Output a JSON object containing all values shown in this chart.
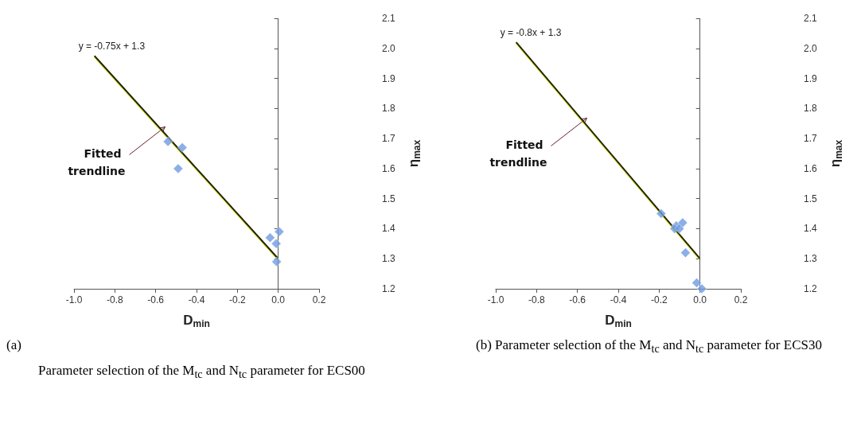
{
  "chart_data": [
    {
      "type": "scatter",
      "xlabel": "D$_{min}$",
      "ylabel": "η$_{max}$",
      "marker": "diamond",
      "grid": false,
      "xlim": [
        -1.0,
        0.2
      ],
      "xticks": [
        {
          "value": -1.0,
          "label": "-1.0"
        },
        {
          "value": -0.8,
          "label": "-0.8"
        },
        {
          "value": -0.6,
          "label": "-0.6"
        },
        {
          "value": -0.4,
          "label": "-0.4"
        },
        {
          "value": -0.2,
          "label": "-0.2"
        },
        {
          "value": 0,
          "label": "0.0"
        },
        {
          "value": 0.2,
          "label": "0.2"
        }
      ],
      "ylim": [
        1.2,
        2.1
      ],
      "yticks": [
        {
          "value": 1.2,
          "label": "1.2"
        },
        {
          "value": 1.3,
          "label": "1.3"
        },
        {
          "value": 1.4,
          "label": "1.4"
        },
        {
          "value": 1.5,
          "label": "1.5"
        },
        {
          "value": 1.6,
          "label": "1.6"
        },
        {
          "value": 1.7,
          "label": "1.7"
        },
        {
          "value": 1.8,
          "label": "1.8"
        },
        {
          "value": 1.9,
          "label": "1.9"
        },
        {
          "value": 2.0,
          "label": "2.0"
        },
        {
          "value": 2.1,
          "label": "2.1"
        }
      ],
      "ref_lines": [
        {
          "axis": "x",
          "value": 0,
          "color": "#555555"
        }
      ],
      "series": [
        {
          "color": "#6f9be0",
          "x": [
            -0.54,
            -0.47,
            -0.49,
            -0.04,
            -0.01,
            0.005,
            -0.008
          ],
          "values": [
            1.69,
            1.67,
            1.6,
            1.37,
            1.35,
            1.39,
            1.29
          ]
        },
        {
          "type": "line",
          "color": "#1a1a00",
          "marker": "none",
          "x": [
            -0.9,
            0
          ],
          "values": [
            1.975,
            1.3
          ]
        }
      ],
      "annotations": [
        "y = -0.75x + 1.3",
        "Fitted trendline",
        "(a)",
        "Parameter selection of the M$_{tc}$ and N$_{tc}$ parameter for ECS00"
      ]
    },
    {
      "type": "scatter",
      "xlabel": "D$_{min}$",
      "ylabel": "η$_{max}$",
      "marker": "diamond",
      "grid": false,
      "xlim": [
        -1.0,
        0.2
      ],
      "xticks": [
        {
          "value": -1.0,
          "label": "-1.0"
        },
        {
          "value": -0.8,
          "label": "-0.8"
        },
        {
          "value": -0.6,
          "label": "-0.6"
        },
        {
          "value": -0.4,
          "label": "-0.4"
        },
        {
          "value": -0.2,
          "label": "-0.2"
        },
        {
          "value": 0,
          "label": "0.0"
        },
        {
          "value": 0.2,
          "label": "0.2"
        }
      ],
      "ylim": [
        1.2,
        2.1
      ],
      "yticks": [
        {
          "value": 1.2,
          "label": "1.2"
        },
        {
          "value": 1.3,
          "label": "1.3"
        },
        {
          "value": 1.4,
          "label": "1.4"
        },
        {
          "value": 1.5,
          "label": "1.5"
        },
        {
          "value": 1.6,
          "label": "1.6"
        },
        {
          "value": 1.7,
          "label": "1.7"
        },
        {
          "value": 1.8,
          "label": "1.8"
        },
        {
          "value": 1.9,
          "label": "1.9"
        },
        {
          "value": 2.0,
          "label": "2.0"
        },
        {
          "value": 2.1,
          "label": "2.1"
        }
      ],
      "ref_lines": [
        {
          "axis": "x",
          "value": 0,
          "color": "#555555"
        }
      ],
      "series": [
        {
          "color": "#6f9be0",
          "x": [
            -0.19,
            -0.116,
            -0.124,
            -0.101,
            -0.085,
            -0.071,
            -0.016,
            0.009
          ],
          "values": [
            1.45,
            1.41,
            1.4,
            1.4,
            1.42,
            1.32,
            1.22,
            1.2
          ]
        },
        {
          "type": "line",
          "color": "#1a1a00",
          "marker": "none",
          "x": [
            -0.9,
            0
          ],
          "values": [
            2.02,
            1.3
          ]
        }
      ],
      "annotations": [
        "y = -0.8x + 1.3",
        "Fitted trendline",
        "(b) Parameter selection of the M$_{tc}$ and N$_{tc}$ parameter for ECS30"
      ]
    }
  ]
}
